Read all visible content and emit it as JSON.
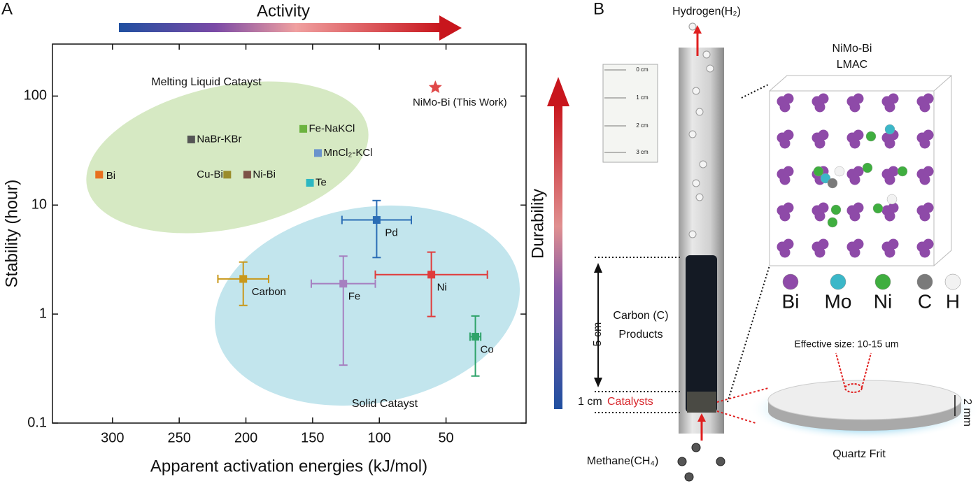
{
  "chart_data": {
    "type": "scatter",
    "panel_label": "A",
    "xlabel": "Apparent activation energies (kJ/mol)",
    "ylabel": "Stability (hour)",
    "xlim": [
      345,
      -10
    ],
    "xticks": [
      300,
      250,
      200,
      150,
      100,
      50
    ],
    "ylim": [
      0.1,
      300
    ],
    "yticks": [
      0.1,
      1,
      10,
      100
    ],
    "log_y": true,
    "annotations": [
      "Activity",
      "Durability",
      "Melting Liquid Catayst",
      "Solid Catayst"
    ],
    "series": [
      {
        "name": "Bi",
        "color": "#e8701e",
        "x": [
          310
        ],
        "values": [
          19
        ]
      },
      {
        "name": "NaBr-KBr",
        "color": "#555555",
        "x": [
          241
        ],
        "values": [
          40
        ]
      },
      {
        "name": "Cu-Bi",
        "color": "#9a8c2a",
        "x": [
          214
        ],
        "values": [
          19
        ]
      },
      {
        "name": "Ni-Bi",
        "color": "#7d5247",
        "x": [
          199
        ],
        "values": [
          19
        ]
      },
      {
        "name": "Fe-NaKCl",
        "color": "#6cb33f",
        "x": [
          157
        ],
        "values": [
          50
        ]
      },
      {
        "name": "MnCl₂-KCl",
        "color": "#6a93cc",
        "x": [
          146
        ],
        "values": [
          30
        ]
      },
      {
        "name": "Te",
        "color": "#2cb7c2",
        "x": [
          152
        ],
        "values": [
          16
        ]
      },
      {
        "name": "NiMo-Bi (This Work)",
        "color": "#e04848",
        "marker": "star",
        "x": [
          58
        ],
        "values": [
          120
        ]
      },
      {
        "name": "Pd",
        "color": "#2b6db5",
        "x": [
          102
        ],
        "values": [
          7.3
        ],
        "xerr": [
          26
        ],
        "ylow": [
          3.3
        ],
        "yhigh": [
          11
        ]
      },
      {
        "name": "Carbon",
        "color": "#c9981a",
        "x": [
          202
        ],
        "values": [
          2.1
        ],
        "xerr": [
          19
        ],
        "ylow": [
          1.2
        ],
        "yhigh": [
          3
        ]
      },
      {
        "name": "Fe",
        "color": "#a67fc0",
        "x": [
          127
        ],
        "values": [
          1.9
        ],
        "xerr": [
          24
        ],
        "ylow": [
          0.34
        ],
        "yhigh": [
          3.4
        ]
      },
      {
        "name": "Ni",
        "color": "#e03c3c",
        "x": [
          61
        ],
        "values": [
          2.3
        ],
        "xerr": [
          42
        ],
        "ylow": [
          0.95
        ],
        "yhigh": [
          3.7
        ]
      },
      {
        "name": "Co",
        "color": "#2fa36a",
        "x": [
          28
        ],
        "values": [
          0.62
        ],
        "xerr": [
          4
        ],
        "ylow": [
          0.27
        ],
        "yhigh": [
          0.96
        ]
      }
    ]
  },
  "panel_b": {
    "panel_label": "B",
    "hydrogen": "Hydrogen(H₂)",
    "methane": "Methane(CH₄)",
    "ruler": [
      "0 cm",
      "1 cm",
      "2 cm",
      "3 cm"
    ],
    "carbon_line1": "Carbon (C)",
    "carbon_line2": "Products",
    "height_5": "5 cm",
    "height_1": "1 cm",
    "catalysts": "Catalysts",
    "model_title1": "NiMo-Bi",
    "model_title2": "LMAC",
    "atoms": [
      {
        "name": "Bi",
        "color": "#8e4aa8"
      },
      {
        "name": "Mo",
        "color": "#3bb7c8"
      },
      {
        "name": "Ni",
        "color": "#3fae3f"
      },
      {
        "name": "C",
        "color": "#7a7a7a"
      },
      {
        "name": "H",
        "color": "#f2f2f2"
      }
    ],
    "effective_size": "Effective size: 10-15 um",
    "thickness": "2 mm",
    "frit": "Quartz Frit"
  }
}
